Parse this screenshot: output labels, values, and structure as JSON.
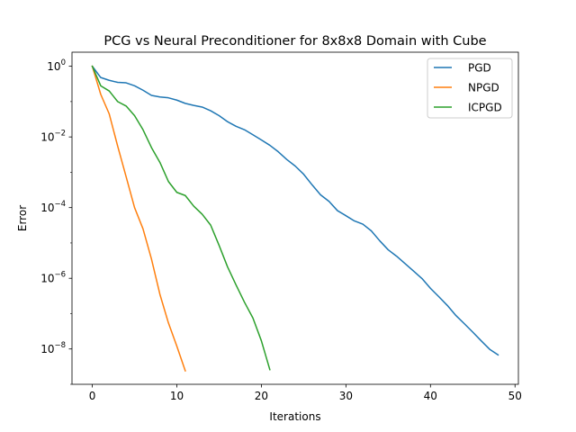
{
  "chart_data": {
    "type": "line",
    "title": "PCG vs Neural Preconditioner for 8x8x8 Domain with Cube",
    "xlabel": "Iterations",
    "ylabel": "Error",
    "xlim": [
      -2.4,
      50.4
    ],
    "ylim": [
      1e-09,
      2.5
    ],
    "yscale": "log",
    "grid": false,
    "legend_position": "top-right",
    "x_ticks": [
      {
        "value": 0,
        "label": "0"
      },
      {
        "value": 10,
        "label": "10"
      },
      {
        "value": 20,
        "label": "20"
      },
      {
        "value": 30,
        "label": "30"
      },
      {
        "value": 40,
        "label": "40"
      },
      {
        "value": 50,
        "label": "50"
      }
    ],
    "y_ticks": [
      {
        "value": 1,
        "base": "10",
        "exp": "0"
      },
      {
        "value": 0.01,
        "base": "10",
        "exp": "−2"
      },
      {
        "value": 0.0001,
        "base": "10",
        "exp": "−4"
      },
      {
        "value": 1e-06,
        "base": "10",
        "exp": "−6"
      },
      {
        "value": 1e-08,
        "base": "10",
        "exp": "−8"
      }
    ],
    "series": [
      {
        "name": "PGD",
        "color": "#1f77b4",
        "x": [
          0,
          1,
          2,
          3,
          4,
          5,
          6,
          7,
          8,
          9,
          10,
          11,
          12,
          13,
          14,
          15,
          16,
          17,
          18,
          19,
          20,
          21,
          22,
          23,
          24,
          25,
          26,
          27,
          28,
          29,
          30,
          31,
          32,
          33,
          34,
          35,
          36,
          37,
          38,
          39,
          40,
          41,
          42,
          43,
          44,
          45,
          46,
          47,
          48
        ],
        "y": [
          1.0,
          0.48,
          0.4,
          0.35,
          0.34,
          0.28,
          0.21,
          0.15,
          0.135,
          0.128,
          0.11,
          0.089,
          0.078,
          0.07,
          0.055,
          0.04,
          0.027,
          0.02,
          0.016,
          0.0115,
          0.0082,
          0.0058,
          0.0038,
          0.0023,
          0.0015,
          0.00088,
          0.00044,
          0.00023,
          0.00015,
          8.2e-05,
          5.9e-05,
          4.2e-05,
          3.4e-05,
          2.2e-05,
          1.15e-05,
          6.4e-06,
          4.2e-06,
          2.6e-06,
          1.6e-06,
          9.8e-07,
          5.2e-07,
          3e-07,
          1.7e-07,
          8.9e-08,
          5.2e-08,
          3e-08,
          1.7e-08,
          9.8e-09,
          6.8e-09
        ]
      },
      {
        "name": "NPGD",
        "color": "#ff7f0e",
        "x": [
          0,
          1,
          2,
          3,
          4,
          5,
          6,
          7,
          8,
          9,
          10,
          11
        ],
        "y": [
          1.0,
          0.16,
          0.045,
          0.0055,
          0.00075,
          0.0001,
          2.5e-05,
          3.5e-06,
          3.5e-07,
          5.5e-08,
          1.2e-08,
          2.4e-09
        ]
      },
      {
        "name": "ICPGD",
        "color": "#2ca02c",
        "x": [
          0,
          1,
          2,
          3,
          4,
          5,
          6,
          7,
          8,
          9,
          10,
          11,
          12,
          13,
          14,
          15,
          16,
          17,
          18,
          19,
          20,
          21
        ],
        "y": [
          1.0,
          0.28,
          0.2,
          0.1,
          0.075,
          0.04,
          0.016,
          0.005,
          0.0019,
          0.00055,
          0.00027,
          0.00022,
          0.00011,
          6.5e-05,
          3.2e-05,
          8.5e-06,
          2.1e-06,
          6.5e-07,
          2.1e-07,
          7.5e-08,
          1.7e-08,
          2.6e-09
        ]
      }
    ]
  }
}
